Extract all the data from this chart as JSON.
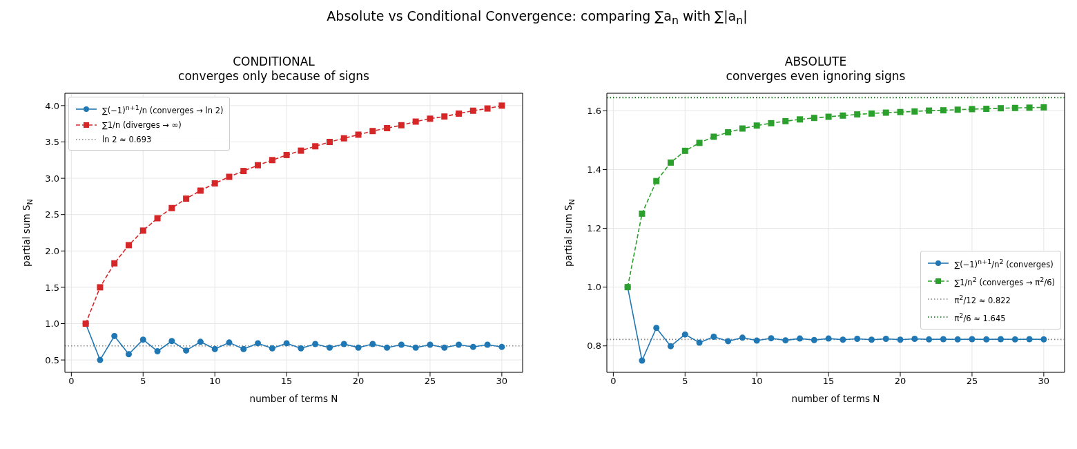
{
  "chart_data": [
    {
      "type": "line",
      "title": "CONDITIONAL",
      "subtitle": "converges only because of signs",
      "annotations": [
        "Absolute vs Conditional Convergence: comparing ∑a$_{n}$ with ∑|a$_{n}$|"
      ],
      "xlabel": "number of terms N",
      "ylabel": "partial sum S$_{N}$",
      "x": [
        1,
        2,
        3,
        4,
        5,
        6,
        7,
        8,
        9,
        10,
        11,
        12,
        13,
        14,
        15,
        16,
        17,
        18,
        19,
        20,
        21,
        22,
        23,
        24,
        25,
        26,
        27,
        28,
        29,
        30
      ],
      "series": [
        {
          "name": "∑(−1)$^{n+1}$/n  (converges → ln 2)",
          "color": "#1f77b4",
          "marker": "circle",
          "line_style": "solid",
          "values": [
            1,
            0.5,
            0.83,
            0.58,
            0.78,
            0.62,
            0.76,
            0.63,
            0.75,
            0.65,
            0.74,
            0.65,
            0.73,
            0.66,
            0.73,
            0.66,
            0.72,
            0.67,
            0.72,
            0.67,
            0.72,
            0.67,
            0.71,
            0.67,
            0.71,
            0.67,
            0.71,
            0.68,
            0.71,
            0.68
          ]
        },
        {
          "name": "∑1/n  (diverges → ∞)",
          "color": "#d62728",
          "marker": "square",
          "line_style": "dashed",
          "values": [
            1,
            1.5,
            1.83,
            2.08,
            2.28,
            2.45,
            2.59,
            2.72,
            2.83,
            2.93,
            3.02,
            3.1,
            3.18,
            3.25,
            3.32,
            3.38,
            3.44,
            3.5,
            3.55,
            3.6,
            3.65,
            3.69,
            3.73,
            3.78,
            3.82,
            3.85,
            3.89,
            3.93,
            3.96,
            4.0
          ]
        }
      ],
      "ref_lines": [
        {
          "axis": "y",
          "value": 0.693,
          "label": "ln 2 ≈ 0.693",
          "color": "#808080",
          "line_style": "dotted"
        }
      ],
      "xlim": [
        -0.45,
        31.45
      ],
      "xticks": [
        0,
        5,
        10,
        15,
        20,
        25,
        30
      ],
      "ylim": [
        0.33,
        4.17
      ],
      "yticks": [
        0.5,
        {
          "value": 1,
          "label": "1.0"
        },
        1.5,
        {
          "value": 2,
          "label": "2.0"
        },
        2.5,
        {
          "value": 3,
          "label": "3.0"
        },
        3.5,
        {
          "value": 4,
          "label": "4.0"
        }
      ],
      "grid": true,
      "legend": "top left"
    },
    {
      "type": "line",
      "title": "ABSOLUTE",
      "subtitle": "converges even ignoring signs",
      "xlabel": "number of terms N",
      "ylabel": "partial sum S$_{N}$",
      "x": [
        1,
        2,
        3,
        4,
        5,
        6,
        7,
        8,
        9,
        10,
        11,
        12,
        13,
        14,
        15,
        16,
        17,
        18,
        19,
        20,
        21,
        22,
        23,
        24,
        25,
        26,
        27,
        28,
        29,
        30
      ],
      "series": [
        {
          "name": "∑(−1)$^{n+1}$/n$^{2}$ (converges)",
          "color": "#1f77b4",
          "marker": "circle",
          "line_style": "solid",
          "values": [
            1,
            0.75,
            0.861,
            0.799,
            0.839,
            0.811,
            0.831,
            0.816,
            0.828,
            0.818,
            0.826,
            0.819,
            0.825,
            0.82,
            0.825,
            0.821,
            0.824,
            0.821,
            0.824,
            0.821,
            0.824,
            0.822,
            0.823,
            0.822,
            0.823,
            0.822,
            0.823,
            0.822,
            0.823,
            0.822
          ]
        },
        {
          "name": "∑1/n$^{2}$ (converges → π$^{2}$/6)",
          "color": "#2ca02c",
          "marker": "square",
          "line_style": "dashed",
          "values": [
            1,
            1.25,
            1.361,
            1.424,
            1.464,
            1.491,
            1.512,
            1.527,
            1.54,
            1.55,
            1.558,
            1.565,
            1.571,
            1.576,
            1.58,
            1.584,
            1.588,
            1.591,
            1.594,
            1.596,
            1.598,
            1.601,
            1.602,
            1.604,
            1.606,
            1.607,
            1.609,
            1.61,
            1.611,
            1.612
          ]
        }
      ],
      "ref_lines": [
        {
          "axis": "y",
          "value": 0.822,
          "label": "π$^{2}$/12 ≈ 0.822",
          "color": "#808080",
          "line_style": "dotted"
        },
        {
          "axis": "y",
          "value": 1.645,
          "label": "π$^{2}$/6 ≈ 1.645",
          "color": "#006400",
          "line_style": "dotted"
        }
      ],
      "xlim": [
        -0.45,
        31.45
      ],
      "xticks": [
        0,
        5,
        10,
        15,
        20,
        25,
        30
      ],
      "ylim": [
        0.71,
        1.66
      ],
      "yticks": [
        0.8,
        {
          "value": 1,
          "label": "1.0"
        },
        1.2,
        1.4,
        1.6
      ],
      "grid": true,
      "legend": "bottom right"
    }
  ]
}
